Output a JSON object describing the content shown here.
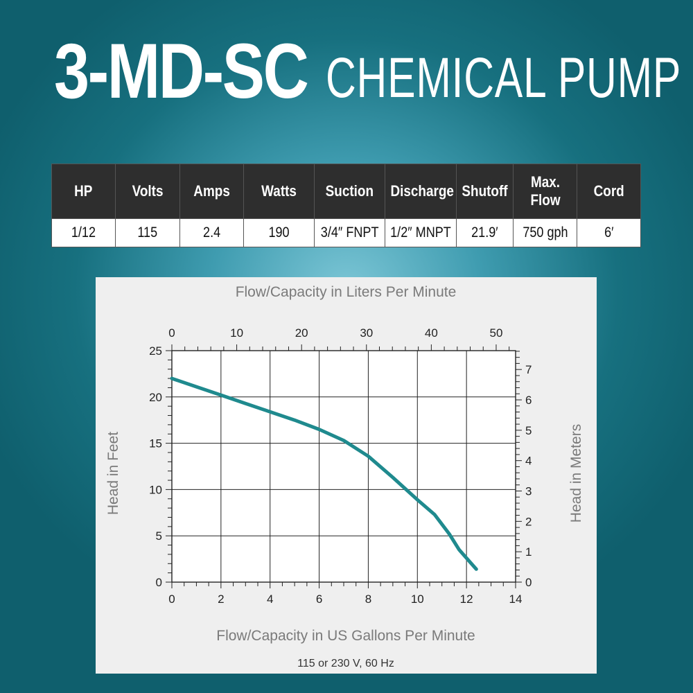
{
  "header": {
    "model": "3-MD-SC",
    "product": "CHEMICAL PUMP"
  },
  "spec_table": {
    "columns": [
      "HP",
      "Volts",
      "Amps",
      "Watts",
      "Suction",
      "Discharge",
      "Shutoff",
      "Max. Flow",
      "Cord"
    ],
    "values": [
      "1/12",
      "115",
      "2.4",
      "190",
      "3/4″ FNPT",
      "1/2″ MNPT",
      "21.9′",
      "750 gph",
      "6′"
    ]
  },
  "chart_data": {
    "type": "line",
    "top_axis_label": "Flow/Capacity in Liters Per Minute",
    "xlabel": "Flow/Capacity in US Gallons Per Minute",
    "ylabel": "Head in Feet",
    "y2label": "Head in Meters",
    "note": "115 or 230 V, 60 Hz",
    "xlim": [
      0,
      14
    ],
    "x_ticks": [
      0,
      2,
      4,
      6,
      8,
      10,
      12,
      14
    ],
    "ylim": [
      0,
      25
    ],
    "y_ticks": [
      0,
      5,
      10,
      15,
      20,
      25
    ],
    "x2_ticks": [
      0,
      10,
      20,
      30,
      40,
      50
    ],
    "y2_ticks": [
      0,
      1,
      2,
      3,
      4,
      5,
      6,
      7
    ],
    "grid": true,
    "line_color": "#1f8a8e",
    "series": [
      {
        "x": [
          0,
          1,
          2,
          3,
          4,
          5,
          6,
          7,
          8,
          9,
          10,
          10.7,
          11.3,
          11.7,
          12.2,
          12.4
        ],
        "y": [
          22,
          21.1,
          20.2,
          19.3,
          18.4,
          17.5,
          16.5,
          15.3,
          13.6,
          11.3,
          8.9,
          7.3,
          5.2,
          3.5,
          2.0,
          1.4
        ]
      }
    ]
  }
}
